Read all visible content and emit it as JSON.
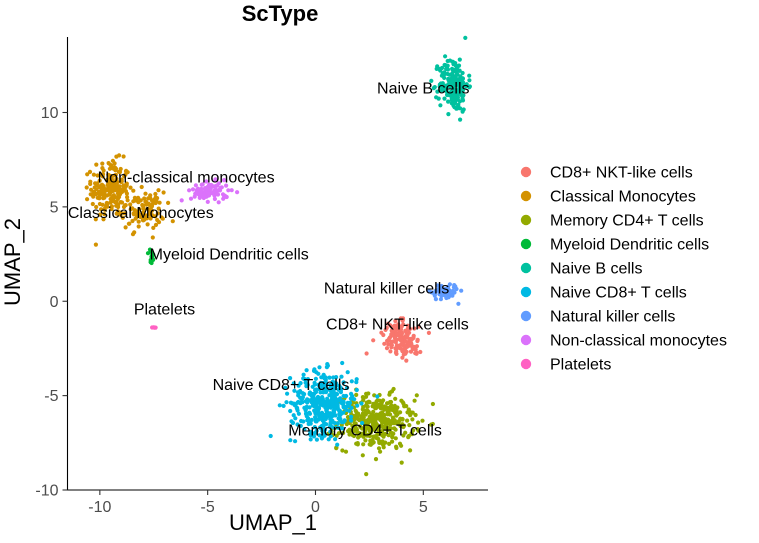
{
  "chart_data": {
    "type": "scatter",
    "title": "ScType",
    "xlabel": "UMAP_1",
    "ylabel": "UMAP_2",
    "xlim": [
      -11.5,
      8
    ],
    "ylim": [
      -10,
      14
    ],
    "x_ticks": [
      -10,
      -5,
      0,
      5
    ],
    "y_ticks": [
      -10,
      -5,
      0,
      5,
      10
    ],
    "grid": false,
    "legend_position": "right",
    "series": [
      {
        "name": "CD8+ NKT-like cells",
        "color": "#F8766D",
        "clusters": [
          {
            "cx": 4.0,
            "cy": -2.0,
            "rx": 0.8,
            "ry": 1.1,
            "n": 140,
            "angle": 0.6
          }
        ]
      },
      {
        "name": "Classical Monocytes",
        "color": "#D39200",
        "clusters": [
          {
            "cx": -9.5,
            "cy": 6.0,
            "rx": 0.8,
            "ry": 1.3,
            "n": 200,
            "angle": 0
          },
          {
            "cx": -8.0,
            "cy": 4.8,
            "rx": 0.9,
            "ry": 0.9,
            "n": 100,
            "angle": 0
          }
        ]
      },
      {
        "name": "Memory CD4+ T cells",
        "color": "#93AA00",
        "clusters": [
          {
            "cx": 2.8,
            "cy": -6.4,
            "rx": 1.6,
            "ry": 1.3,
            "n": 380,
            "angle": 0
          }
        ]
      },
      {
        "name": "Myeloid Dendritic cells",
        "color": "#00BA38",
        "clusters": [
          {
            "cx": -7.6,
            "cy": 2.3,
            "rx": 0.12,
            "ry": 0.45,
            "n": 14,
            "angle": 0
          }
        ]
      },
      {
        "name": "Naive B cells",
        "color": "#00C19F",
        "clusters": [
          {
            "cx": 6.4,
            "cy": 11.5,
            "rx": 0.6,
            "ry": 1.3,
            "n": 200,
            "angle": 0
          }
        ]
      },
      {
        "name": "Naive CD8+ T cells",
        "color": "#00B9E3",
        "clusters": [
          {
            "cx": 0.4,
            "cy": -5.4,
            "rx": 1.4,
            "ry": 1.5,
            "n": 380,
            "angle": 0
          }
        ]
      },
      {
        "name": "Natural killer  cells",
        "color": "#619CFF",
        "clusters": [
          {
            "cx": 6.0,
            "cy": 0.5,
            "rx": 0.55,
            "ry": 0.4,
            "n": 70,
            "angle": 0
          }
        ]
      },
      {
        "name": "Non-classical monocytes",
        "color": "#DB72FB",
        "clusters": [
          {
            "cx": -4.9,
            "cy": 5.8,
            "rx": 0.8,
            "ry": 0.45,
            "n": 90,
            "angle": 0
          }
        ]
      },
      {
        "name": "Platelets",
        "color": "#FF61C3",
        "clusters": [
          {
            "cx": -7.5,
            "cy": -1.4,
            "rx": 0.08,
            "ry": 0.06,
            "n": 5,
            "angle": 0
          }
        ]
      }
    ],
    "annotations": [
      {
        "text": "Naive B cells",
        "x": 5.0,
        "y": 11.0
      },
      {
        "text": "Non-classical monocytes",
        "x": -6.0,
        "y": 6.3
      },
      {
        "text": "Classical Monocytes",
        "x": -8.1,
        "y": 4.4
      },
      {
        "text": "Myeloid Dendritic cells",
        "x": -4.0,
        "y": 2.2
      },
      {
        "text": "Natural killer  cells",
        "x": 3.3,
        "y": 0.4
      },
      {
        "text": "Platelets",
        "x": -7.0,
        "y": -0.7
      },
      {
        "text": "CD8+ NKT-like cells",
        "x": 3.8,
        "y": -1.5
      },
      {
        "text": "Naive CD8+ T cells",
        "x": -1.6,
        "y": -4.7
      },
      {
        "text": "Memory CD4+ T cells",
        "x": 2.3,
        "y": -7.1
      }
    ]
  }
}
